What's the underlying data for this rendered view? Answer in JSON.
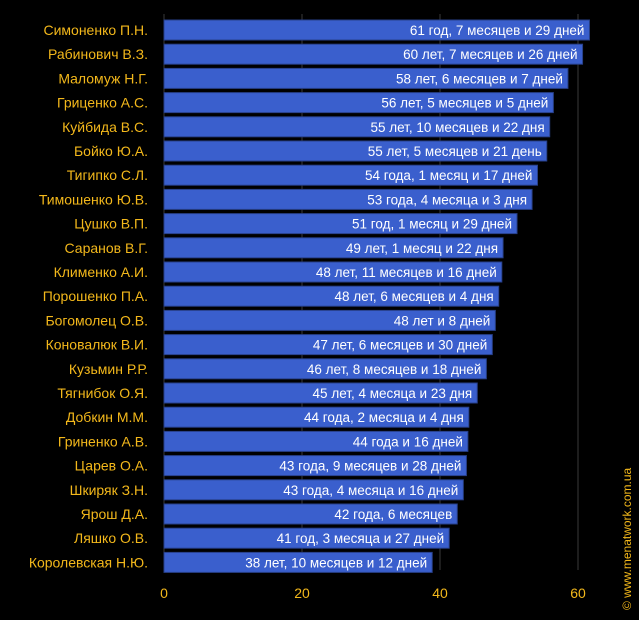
{
  "watermark": "© www.menatwork.com.ua",
  "colors": {
    "background": "#000000",
    "bar": "#3a5fcd",
    "bar_edge": "#28408a",
    "category_label": "#f3b81b",
    "tick_label": "#f3b81b",
    "bar_label": "#ffffff",
    "grid": "#3a3a3a"
  },
  "chart_data": {
    "type": "bar",
    "orientation": "horizontal",
    "title": "",
    "xlabel": "",
    "ylabel": "",
    "xlim": [
      0,
      63
    ],
    "xticks": [
      0,
      20,
      40,
      60
    ],
    "grid": true,
    "categories": [
      "Симоненко П.Н.",
      "Рабинович В.З.",
      "Маломуж Н.Г.",
      "Гриценко А.С.",
      "Куйбида В.С.",
      "Бойко Ю.А.",
      "Тигипко С.Л.",
      "Тимошенко Ю.В.",
      "Цушко В.П.",
      "Саранов В.Г.",
      "Клименко А.И.",
      "Порошенко П.А.",
      "Богомолец О.В.",
      "Коновалюк В.И.",
      "Кузьмин Р.Р.",
      "Тягнибок О.Я.",
      "Добкин М.М.",
      "Гриненко А.В.",
      "Царев О.А.",
      "Шкиряк З.Н.",
      "Ярош Д.А.",
      "Ляшко О.В.",
      "Королевская Н.Ю."
    ],
    "values": [
      61.66,
      60.66,
      58.54,
      56.43,
      55.9,
      55.47,
      54.13,
      53.34,
      51.16,
      49.14,
      48.96,
      48.51,
      48.02,
      47.58,
      46.72,
      45.4,
      44.18,
      44.04,
      43.83,
      43.38,
      42.5,
      41.33,
      38.87
    ],
    "data_labels": [
      "61 год, 7 месяцев и 29 дней",
      "60 лет, 7 месяцев и 26 дней",
      "58 лет, 6 месяцев и 7 дней",
      "56 лет, 5 месяцев и 5 дней",
      "55 лет, 10 месяцев и 22 дня",
      "55 лет, 5 месяцев и 21 день",
      "54 года, 1 месяц и 17 дней",
      "53 года, 4 месяца и 3 дня",
      "51 год, 1 месяц и 29 дней",
      "49 лет, 1 месяц и 22 дня",
      "48 лет, 11 месяцев и 16 дней",
      "48 лет, 6 месяцев и 4 дня",
      "48 лет и 8 дней",
      "47 лет, 6 месяцев и 30 дней",
      "46 лет, 8 месяцев и 18 дней",
      "45 лет, 4 месяца и 23 дня",
      "44 года, 2 месяца и 4 дня",
      "44 года и 16 дней",
      "43 года, 9 месяцев и 28 дней",
      "43 года, 4 месяца и 16 дней",
      "42 года, 6 месяцев",
      "41 год, 3 месяца и 27 дней",
      "38 лет, 10 месяцев и 12 дней"
    ]
  }
}
